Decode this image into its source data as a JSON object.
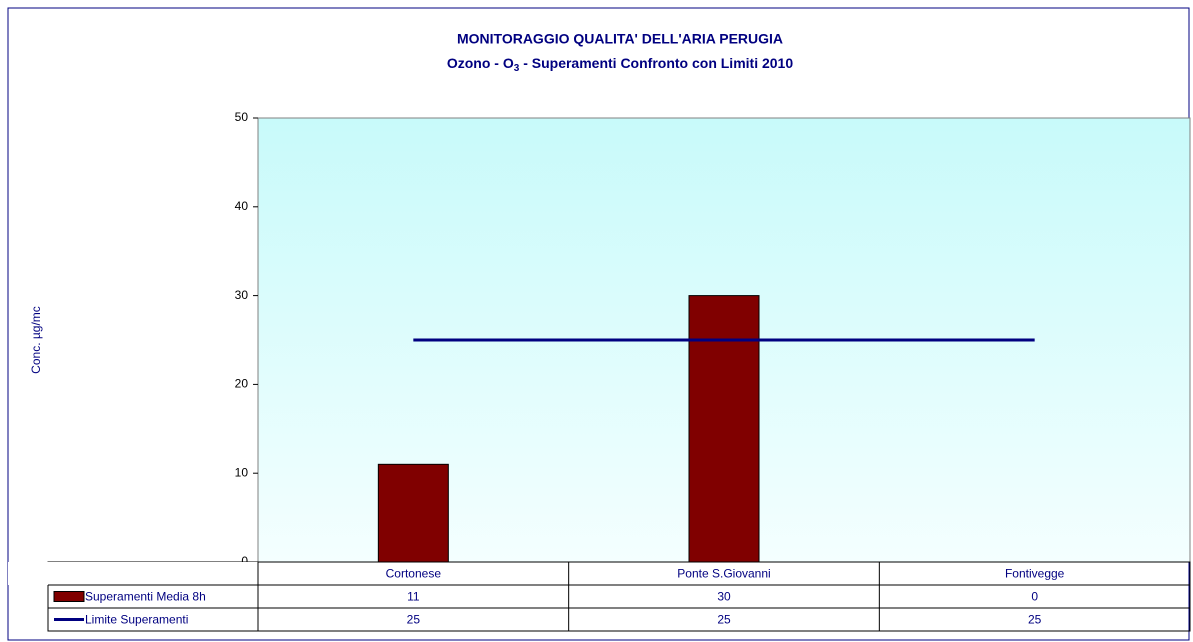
{
  "chart_data": {
    "type": "bar",
    "title": "MONITORAGGIO QUALITA' DELL'ARIA  PERUGIA",
    "subtitle": [
      "Ozono - O",
      "3",
      " - Superamenti Confronto con Limiti 2010"
    ],
    "y_label": "Conc. µg/mc",
    "categories": [
      "Cortonese",
      "Ponte S.Giovanni",
      "Fontivegge"
    ],
    "series": [
      {
        "name": "Superamenti Media  8h",
        "type": "bar",
        "color": "#800000",
        "values": [
          11,
          30,
          0
        ]
      },
      {
        "name": "Limite Superamenti",
        "type": "line",
        "color": "#000080",
        "values": [
          25,
          25,
          25
        ]
      }
    ],
    "ylim": [
      0,
      50
    ],
    "yticks": [
      0,
      10,
      20,
      30,
      40,
      50
    ]
  }
}
